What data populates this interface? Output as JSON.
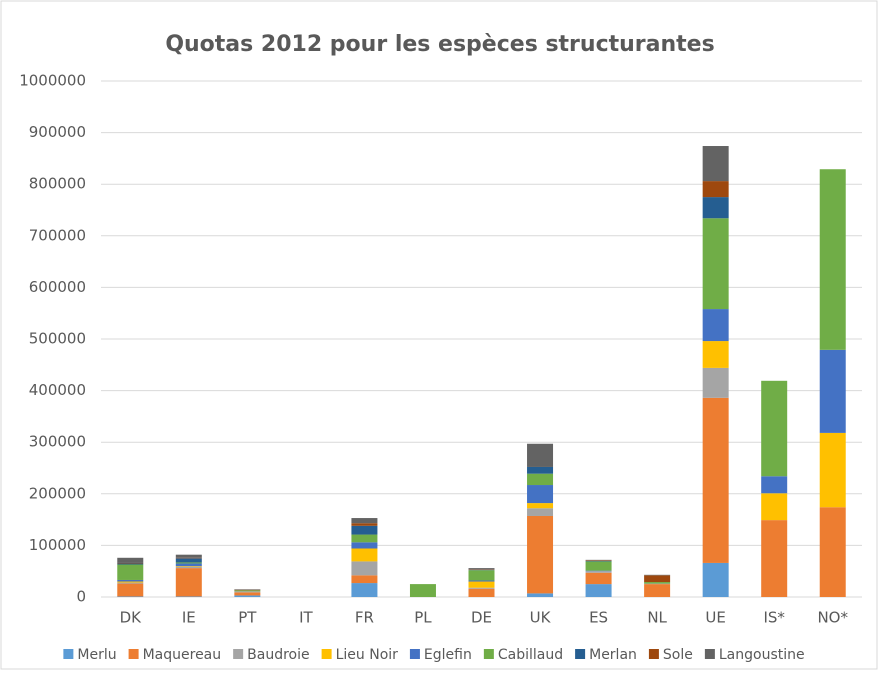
{
  "chart_data": {
    "type": "bar",
    "stacked": true,
    "title": "Quotas 2012 pour les espèces structurantes",
    "categories": [
      "DK",
      "IE",
      "PT",
      "IT",
      "FR",
      "PL",
      "DE",
      "UK",
      "ES",
      "NL",
      "UE",
      "IS*",
      "NO*"
    ],
    "series": [
      {
        "name": "Merlu",
        "color": "#5b9bd5",
        "values": [
          1000,
          1000,
          3000,
          0,
          27000,
          0,
          0,
          7000,
          25000,
          0,
          66000,
          0,
          0
        ]
      },
      {
        "name": "Maquereau",
        "color": "#ed7d31",
        "values": [
          25000,
          55000,
          6000,
          0,
          15000,
          0,
          16000,
          150000,
          22000,
          25000,
          320000,
          149000,
          174000
        ]
      },
      {
        "name": "Baudroie",
        "color": "#a5a5a5",
        "values": [
          2000,
          3000,
          2000,
          0,
          27000,
          0,
          2000,
          15000,
          3000,
          1000,
          58000,
          0,
          0
        ]
      },
      {
        "name": "Lieu Noir",
        "color": "#ffc000",
        "values": [
          2000,
          1000,
          0,
          0,
          25000,
          0,
          12000,
          10000,
          0,
          0,
          52000,
          52000,
          144000
        ]
      },
      {
        "name": "Eglefin",
        "color": "#4472c4",
        "values": [
          3000,
          5000,
          0,
          0,
          12000,
          0,
          2000,
          35000,
          1000,
          0,
          62000,
          33000,
          161000
        ]
      },
      {
        "name": "Cabillaud",
        "color": "#70ad47",
        "values": [
          30000,
          2000,
          2000,
          0,
          15000,
          25000,
          20000,
          22000,
          18000,
          3000,
          176000,
          185000,
          350000
        ]
      },
      {
        "name": "Merlan",
        "color": "#255e91",
        "values": [
          2000,
          8000,
          0,
          0,
          17000,
          0,
          1000,
          13000,
          1000,
          0,
          41000,
          0,
          0
        ]
      },
      {
        "name": "Sole",
        "color": "#9e480e",
        "values": [
          1000,
          1000,
          1000,
          0,
          5000,
          0,
          1000,
          0,
          1000,
          13000,
          31000,
          0,
          0
        ]
      },
      {
        "name": "Langoustine",
        "color": "#636363",
        "values": [
          10000,
          6000,
          1000,
          0,
          10000,
          0,
          2000,
          45000,
          1000,
          1000,
          68000,
          0,
          0
        ]
      }
    ],
    "ylim": [
      0,
      1000000
    ],
    "yticks": [
      0,
      100000,
      200000,
      300000,
      400000,
      500000,
      600000,
      700000,
      800000,
      900000,
      1000000
    ],
    "grid": true,
    "legend": "bottom"
  }
}
